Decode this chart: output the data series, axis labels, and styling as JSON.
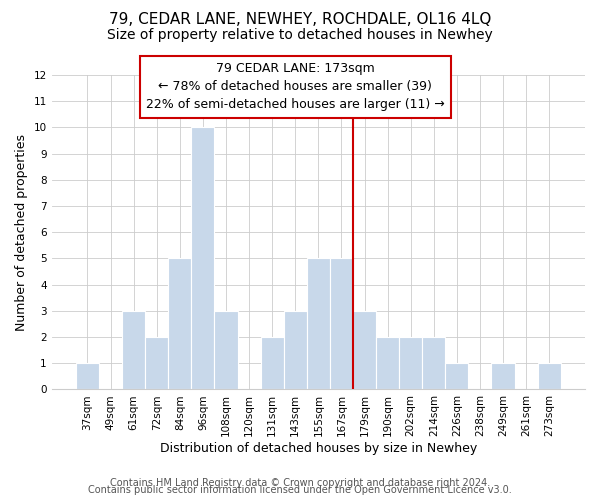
{
  "title": "79, CEDAR LANE, NEWHEY, ROCHDALE, OL16 4LQ",
  "subtitle": "Size of property relative to detached houses in Newhey",
  "xlabel": "Distribution of detached houses by size in Newhey",
  "ylabel": "Number of detached properties",
  "categories": [
    "37sqm",
    "49sqm",
    "61sqm",
    "72sqm",
    "84sqm",
    "96sqm",
    "108sqm",
    "120sqm",
    "131sqm",
    "143sqm",
    "155sqm",
    "167sqm",
    "179sqm",
    "190sqm",
    "202sqm",
    "214sqm",
    "226sqm",
    "238sqm",
    "249sqm",
    "261sqm",
    "273sqm"
  ],
  "values": [
    1,
    0,
    3,
    2,
    5,
    10,
    3,
    0,
    2,
    3,
    5,
    5,
    3,
    2,
    2,
    2,
    1,
    0,
    1,
    0,
    1
  ],
  "bar_color": "#c8d8ea",
  "bar_edge_color": "#ffffff",
  "reference_line_color": "#cc0000",
  "reference_line_index": 12,
  "annotation_title": "79 CEDAR LANE: 173sqm",
  "annotation_line1": "← 78% of detached houses are smaller (39)",
  "annotation_line2": "22% of semi-detached houses are larger (11) →",
  "annotation_box_color": "#ffffff",
  "annotation_box_edge": "#cc0000",
  "ylim": [
    0,
    12
  ],
  "yticks": [
    0,
    1,
    2,
    3,
    4,
    5,
    6,
    7,
    8,
    9,
    10,
    11,
    12
  ],
  "footer1": "Contains HM Land Registry data © Crown copyright and database right 2024.",
  "footer2": "Contains public sector information licensed under the Open Government Licence v3.0.",
  "title_fontsize": 11,
  "subtitle_fontsize": 10,
  "axis_label_fontsize": 9,
  "tick_fontsize": 7.5,
  "annotation_fontsize": 9,
  "footer_fontsize": 7
}
